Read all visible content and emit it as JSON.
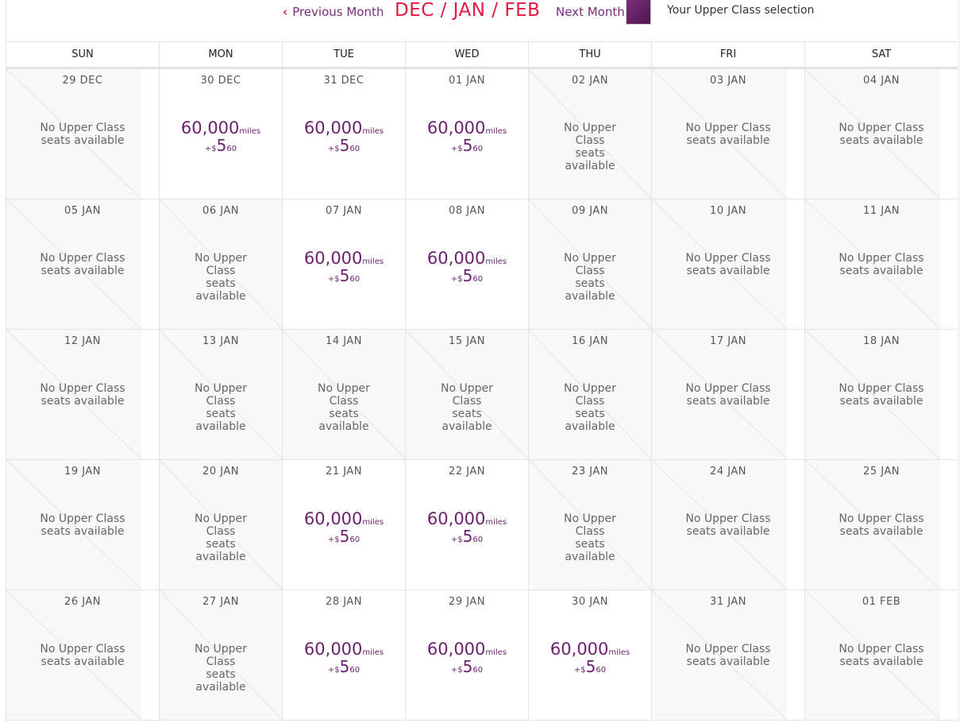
{
  "nav": {
    "prev_label": "Previous Month",
    "range_label": "DEC / JAN / FEB",
    "next_label": "Next Month",
    "legend_label": "Your Upper Class selection",
    "legend_color": "#5e1e5f"
  },
  "days": [
    "SUN",
    "MON",
    "TUE",
    "WED",
    "THU",
    "FRI",
    "SAT"
  ],
  "no_seats": "No Upper Class seats available",
  "price": {
    "miles": "60,000",
    "miles_unit": "miles",
    "fee_prefix": "+$",
    "fee_major": "5",
    "fee_minor": "60"
  },
  "weeks": [
    [
      {
        "date": "29 DEC",
        "available": false
      },
      {
        "date": "30 DEC",
        "available": true
      },
      {
        "date": "31 DEC",
        "available": true
      },
      {
        "date": "01 JAN",
        "available": true
      },
      {
        "date": "02 JAN",
        "available": false
      },
      {
        "date": "03 JAN",
        "available": false
      },
      {
        "date": "04 JAN",
        "available": false
      }
    ],
    [
      {
        "date": "05 JAN",
        "available": false
      },
      {
        "date": "06 JAN",
        "available": false
      },
      {
        "date": "07 JAN",
        "available": true
      },
      {
        "date": "08 JAN",
        "available": true
      },
      {
        "date": "09 JAN",
        "available": false
      },
      {
        "date": "10 JAN",
        "available": false
      },
      {
        "date": "11 JAN",
        "available": false
      }
    ],
    [
      {
        "date": "12 JAN",
        "available": false
      },
      {
        "date": "13 JAN",
        "available": false
      },
      {
        "date": "14 JAN",
        "available": false
      },
      {
        "date": "15 JAN",
        "available": false
      },
      {
        "date": "16 JAN",
        "available": false
      },
      {
        "date": "17 JAN",
        "available": false
      },
      {
        "date": "18 JAN",
        "available": false
      }
    ],
    [
      {
        "date": "19 JAN",
        "available": false
      },
      {
        "date": "20 JAN",
        "available": false
      },
      {
        "date": "21 JAN",
        "available": true
      },
      {
        "date": "22 JAN",
        "available": true
      },
      {
        "date": "23 JAN",
        "available": false
      },
      {
        "date": "24 JAN",
        "available": false
      },
      {
        "date": "25 JAN",
        "available": false
      }
    ],
    [
      {
        "date": "26 JAN",
        "available": false
      },
      {
        "date": "27 JAN",
        "available": false
      },
      {
        "date": "28 JAN",
        "available": true
      },
      {
        "date": "29 JAN",
        "available": true
      },
      {
        "date": "30 JAN",
        "available": true
      },
      {
        "date": "31 JAN",
        "available": false
      },
      {
        "date": "01 FEB",
        "available": false
      }
    ]
  ]
}
